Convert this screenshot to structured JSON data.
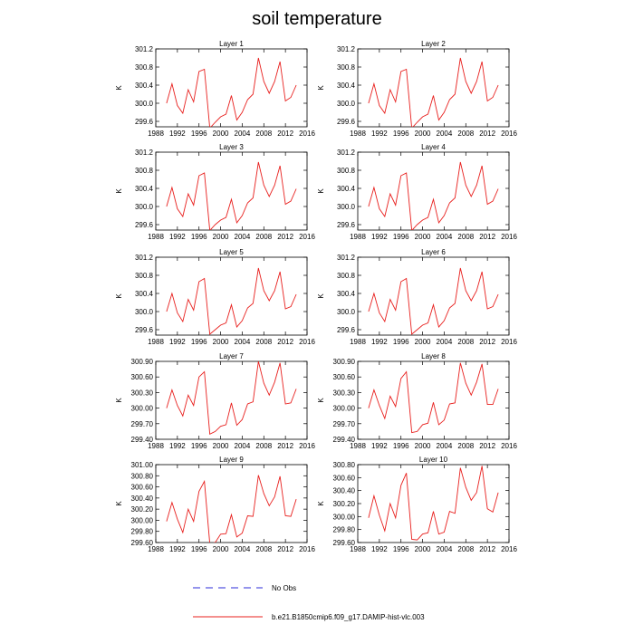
{
  "title": "soil temperature",
  "chart_data": {
    "type": "line",
    "title": "soil temperature",
    "xlabel": "",
    "ylabel": "K",
    "x": [
      1990,
      1991,
      1992,
      1993,
      1994,
      1995,
      1996,
      1997,
      1998,
      1999,
      2000,
      2001,
      2002,
      2003,
      2004,
      2005,
      2006,
      2007,
      2008,
      2009,
      2010,
      2011,
      2012,
      2013,
      2014
    ],
    "xlim": [
      1988,
      2016
    ],
    "xticks": [
      "1988",
      "1992",
      "1996",
      "2000",
      "2004",
      "2008",
      "2012",
      "2016"
    ],
    "series_color": "#e8201e",
    "panels": [
      {
        "name": "Layer 1",
        "ylabel": "K",
        "ylim": [
          299.48,
          301.2
        ],
        "yticks": [
          "299.6",
          "300.0",
          "300.4",
          "300.8",
          "301.2"
        ],
        "values": [
          300.0,
          300.43,
          299.95,
          299.78,
          300.3,
          300.03,
          300.7,
          300.75,
          299.45,
          299.58,
          299.7,
          299.76,
          300.17,
          299.63,
          299.8,
          300.08,
          300.2,
          301.0,
          300.48,
          300.22,
          300.48,
          300.92,
          300.05,
          300.13,
          300.4
        ]
      },
      {
        "name": "Layer 2",
        "ylabel": "K",
        "ylim": [
          299.48,
          301.2
        ],
        "yticks": [
          "299.6",
          "300.0",
          "300.4",
          "300.8",
          "301.2"
        ],
        "values": [
          300.0,
          300.43,
          299.95,
          299.78,
          300.3,
          300.03,
          300.7,
          300.75,
          299.45,
          299.58,
          299.7,
          299.76,
          300.17,
          299.63,
          299.8,
          300.08,
          300.2,
          301.0,
          300.48,
          300.22,
          300.48,
          300.92,
          300.05,
          300.13,
          300.4
        ]
      },
      {
        "name": "Layer 3",
        "ylabel": "K",
        "ylim": [
          299.48,
          301.2
        ],
        "yticks": [
          "299.6",
          "300.0",
          "300.4",
          "300.8",
          "301.2"
        ],
        "values": [
          300.0,
          300.42,
          299.95,
          299.78,
          300.28,
          300.03,
          300.68,
          300.74,
          299.47,
          299.6,
          299.7,
          299.76,
          300.16,
          299.64,
          299.8,
          300.08,
          300.19,
          300.98,
          300.47,
          300.22,
          300.47,
          300.9,
          300.05,
          300.12,
          300.39
        ]
      },
      {
        "name": "Layer 4",
        "ylabel": "K",
        "ylim": [
          299.48,
          301.2
        ],
        "yticks": [
          "299.6",
          "300.0",
          "300.4",
          "300.8",
          "301.2"
        ],
        "values": [
          300.0,
          300.42,
          299.95,
          299.78,
          300.28,
          300.03,
          300.68,
          300.74,
          299.47,
          299.6,
          299.7,
          299.76,
          300.16,
          299.64,
          299.8,
          300.08,
          300.19,
          300.98,
          300.47,
          300.22,
          300.47,
          300.9,
          300.05,
          300.12,
          300.39
        ]
      },
      {
        "name": "Layer 5",
        "ylabel": "K",
        "ylim": [
          299.48,
          301.2
        ],
        "yticks": [
          "299.6",
          "300.0",
          "300.4",
          "300.8",
          "301.2"
        ],
        "values": [
          300.0,
          300.4,
          299.97,
          299.78,
          300.27,
          300.03,
          300.66,
          300.73,
          299.5,
          299.6,
          299.7,
          299.75,
          300.15,
          299.66,
          299.8,
          300.08,
          300.18,
          300.96,
          300.46,
          300.24,
          300.46,
          300.88,
          300.06,
          300.11,
          300.38
        ]
      },
      {
        "name": "Layer 6",
        "ylabel": "K",
        "ylim": [
          299.48,
          301.2
        ],
        "yticks": [
          "299.6",
          "300.0",
          "300.4",
          "300.8",
          "301.2"
        ],
        "values": [
          300.0,
          300.4,
          299.97,
          299.78,
          300.27,
          300.03,
          300.66,
          300.73,
          299.5,
          299.6,
          299.7,
          299.75,
          300.15,
          299.66,
          299.8,
          300.08,
          300.18,
          300.96,
          300.46,
          300.24,
          300.46,
          300.88,
          300.06,
          300.11,
          300.38
        ]
      },
      {
        "name": "Layer 7",
        "ylabel": "K",
        "ylim": [
          299.4,
          300.9
        ],
        "yticks": [
          "299.40",
          "299.70",
          "300.00",
          "300.30",
          "300.60",
          "300.90"
        ],
        "values": [
          300.0,
          300.35,
          300.05,
          299.85,
          300.25,
          300.05,
          300.6,
          300.7,
          299.5,
          299.55,
          299.65,
          299.68,
          300.1,
          299.67,
          299.78,
          300.08,
          300.12,
          300.9,
          300.48,
          300.25,
          300.5,
          300.87,
          300.08,
          300.1,
          300.37
        ]
      },
      {
        "name": "Layer 8",
        "ylabel": "K",
        "ylim": [
          299.4,
          300.9
        ],
        "yticks": [
          "299.40",
          "299.70",
          "300.00",
          "300.30",
          "300.60",
          "300.90"
        ],
        "values": [
          300.0,
          300.35,
          300.05,
          299.8,
          300.23,
          300.03,
          300.57,
          300.7,
          299.53,
          299.55,
          299.68,
          299.71,
          300.11,
          299.68,
          299.77,
          300.08,
          300.1,
          300.87,
          300.48,
          300.25,
          300.5,
          300.85,
          300.07,
          300.07,
          300.37
        ]
      },
      {
        "name": "Layer 9",
        "ylabel": "K",
        "ylim": [
          299.6,
          301.0
        ],
        "yticks": [
          "299.60",
          "299.80",
          "300.00",
          "300.20",
          "300.40",
          "300.60",
          "300.80",
          "301.00"
        ],
        "values": [
          299.98,
          300.32,
          300.02,
          299.78,
          300.2,
          299.98,
          300.52,
          300.7,
          299.58,
          299.6,
          299.75,
          299.76,
          300.1,
          299.7,
          299.77,
          300.08,
          300.07,
          300.81,
          300.48,
          300.26,
          300.42,
          300.79,
          300.08,
          300.07,
          300.38
        ]
      },
      {
        "name": "Layer 10",
        "ylabel": "K",
        "ylim": [
          299.6,
          300.8
        ],
        "yticks": [
          "299.60",
          "299.80",
          "300.00",
          "300.20",
          "300.40",
          "300.60",
          "300.80"
        ],
        "values": [
          299.98,
          300.32,
          300.02,
          299.78,
          300.2,
          299.98,
          300.48,
          300.67,
          299.65,
          299.64,
          299.73,
          299.75,
          300.08,
          299.73,
          299.76,
          300.08,
          300.05,
          300.75,
          300.45,
          300.25,
          300.37,
          300.78,
          300.12,
          300.07,
          300.37
        ]
      }
    ],
    "legend": [
      {
        "label": "No Obs",
        "style": "dashed",
        "color": "#2b2bd8"
      },
      {
        "label": "b.e21.B1850cmip6.f09_g17.DAMIP-hist-vlc.003",
        "style": "solid",
        "color": "#e8201e"
      }
    ],
    "legend_position": "bottom"
  }
}
